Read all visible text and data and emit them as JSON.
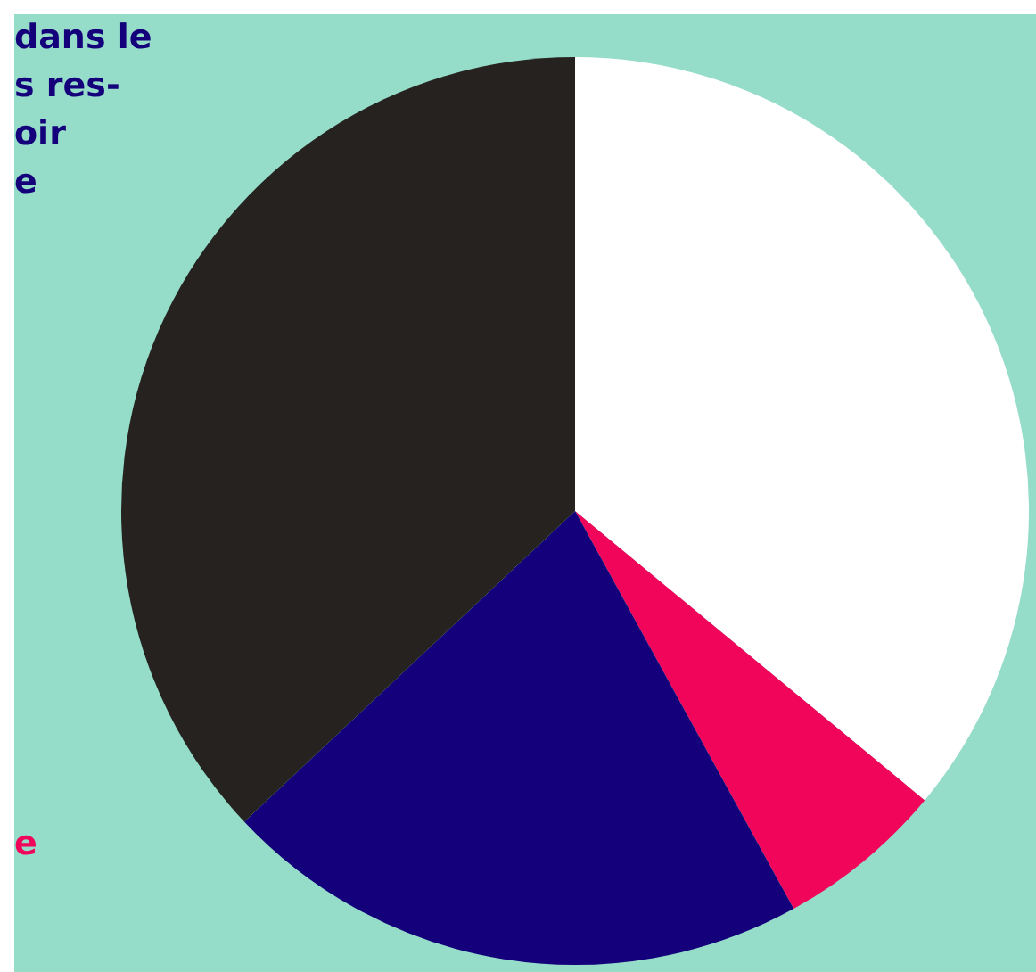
{
  "chart_data": {
    "type": "pie",
    "categories": [
      null,
      null,
      null,
      null
    ],
    "values": [
      36,
      6,
      21,
      37
    ],
    "colors": [
      "#ffffff",
      "#f0055a",
      "#14007a",
      "#25221f"
    ],
    "legend": false,
    "annotations": [
      "dans le\ns res-\noir\ne",
      "e"
    ]
  }
}
